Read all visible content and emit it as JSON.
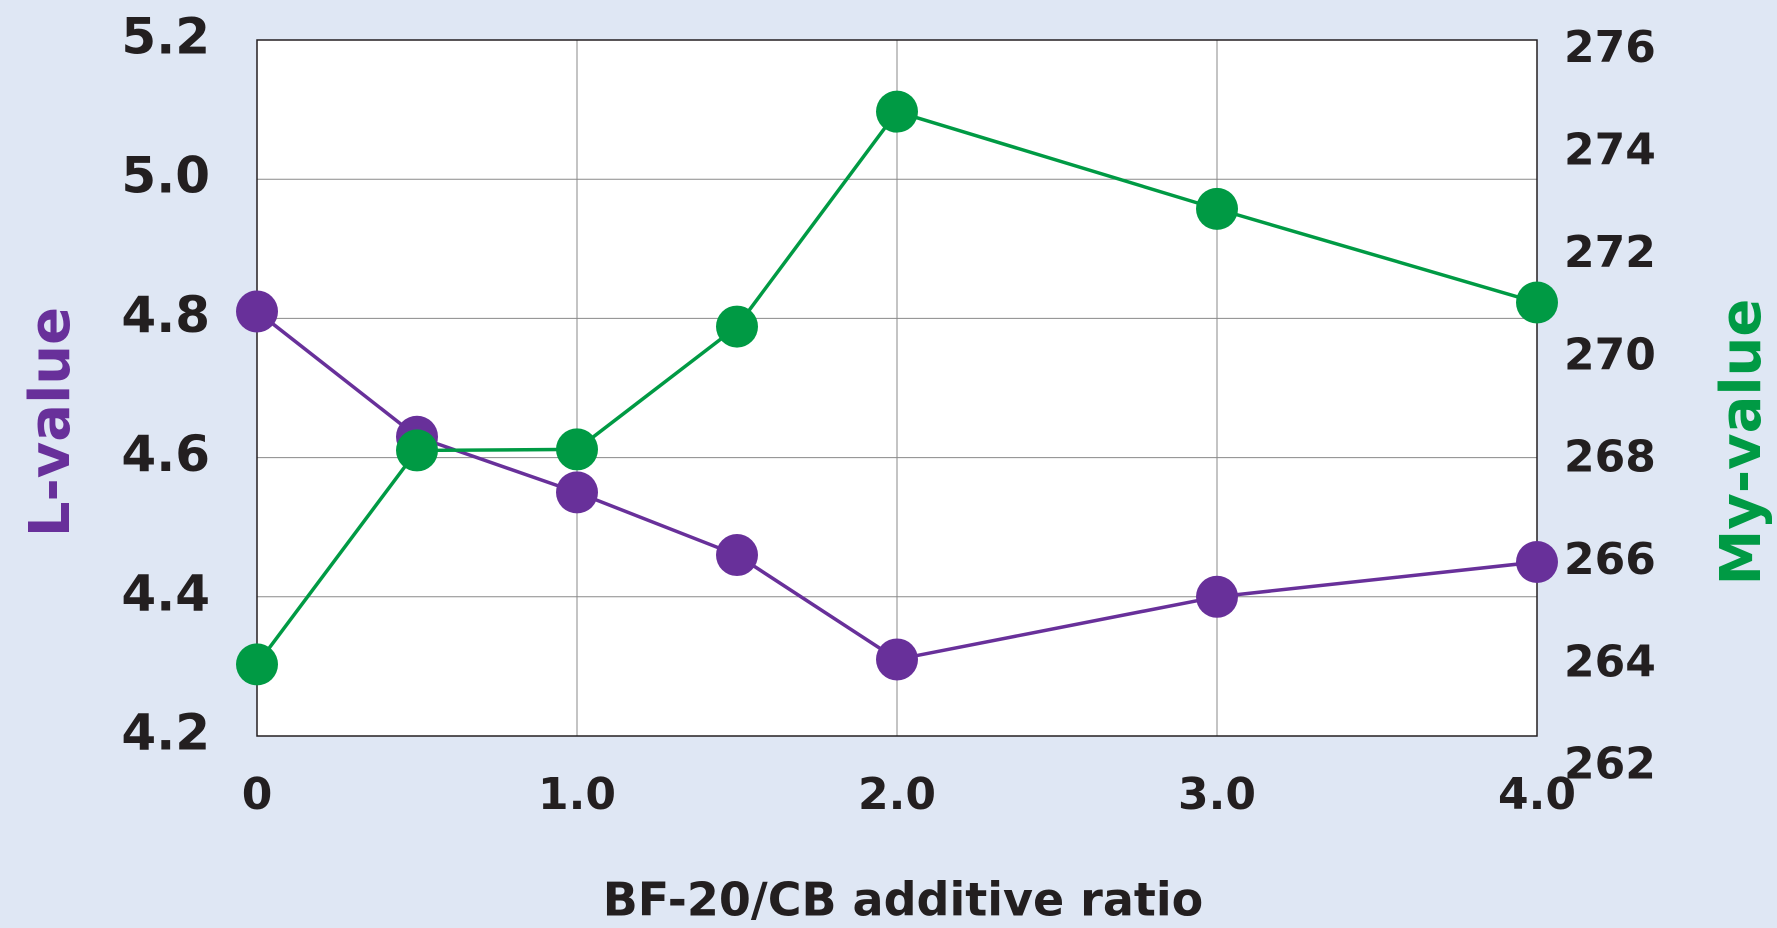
{
  "chart_data": {
    "type": "line",
    "xlabel": "BF-20/CB additive ratio",
    "ylabel": "L-value",
    "y2label": "My-value",
    "x": [
      0,
      0.5,
      1.0,
      1.5,
      2.0,
      3.0,
      4.0
    ],
    "series": [
      {
        "name": "L-value",
        "color": "#68309a",
        "values": [
          4.81,
          4.63,
          4.55,
          4.46,
          4.31,
          4.4,
          4.45
        ]
      },
      {
        "name": "My-value",
        "color": "#009a44",
        "axis": "y2",
        "values": [
          264,
          268.18,
          268.2,
          270.6,
          274.8,
          272.9,
          271.07
        ]
      }
    ],
    "xlim": [
      0,
      4
    ],
    "xticks": [
      0,
      {
        "value": 1,
        "label": "1.0"
      },
      {
        "value": 2,
        "label": "2.0"
      },
      {
        "value": 3,
        "label": "3.0"
      },
      {
        "value": 4,
        "label": "4.0"
      }
    ],
    "ylim": [
      4.2,
      5.2
    ],
    "yticks": [
      4.2,
      4.4,
      4.6,
      4.8,
      {
        "value": 5,
        "label": "5.0"
      },
      5.2
    ],
    "y2lim": [
      262.6,
      276.2
    ],
    "y2ticks": [
      262,
      264,
      266,
      268,
      270,
      272,
      274,
      276
    ],
    "grid": true
  }
}
